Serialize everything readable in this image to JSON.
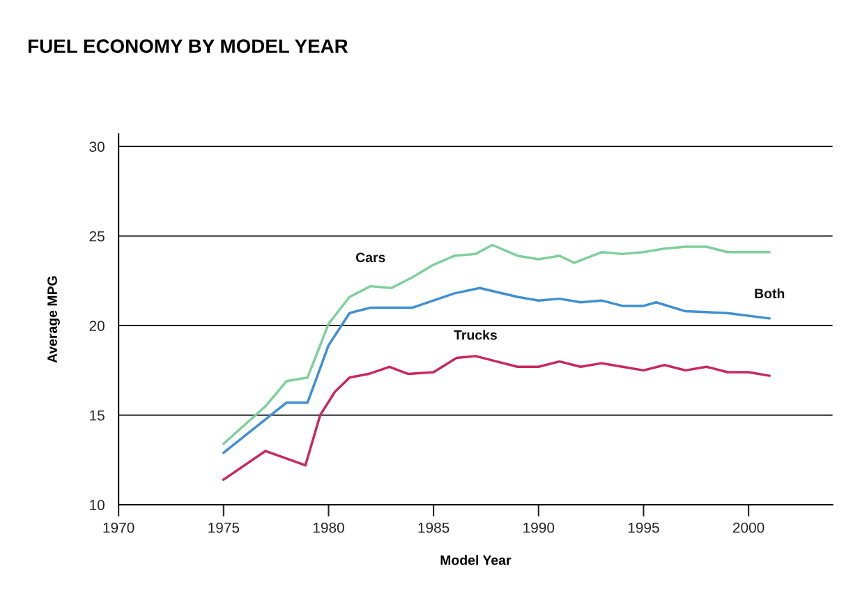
{
  "chart_data": {
    "type": "line",
    "title": "FUEL ECONOMY BY MODEL YEAR",
    "xlabel": "Model Year",
    "ylabel": "Average MPG",
    "xlim": [
      1970,
      2004
    ],
    "xticks": [
      1970,
      1975,
      1980,
      1985,
      1990,
      1995,
      2000
    ],
    "ylim": [
      10,
      30.7
    ],
    "yticks": [
      10,
      15,
      20,
      25,
      30
    ],
    "grid": "y",
    "marker": "none",
    "line_style": "solid",
    "legend": false,
    "series": [
      {
        "name": "Cars",
        "color": "#7fcf9c",
        "x": [
          1975,
          1977,
          1978,
          1979,
          1980,
          1981,
          1982,
          1983,
          1984,
          1985,
          1986,
          1987,
          1987.8,
          1989,
          1990,
          1991,
          1991.7,
          1993,
          1994,
          1995,
          1996,
          1997,
          1998,
          1999,
          2000,
          2001
        ],
        "values": [
          13.4,
          15.5,
          16.9,
          17.1,
          20.1,
          21.6,
          22.2,
          22.1,
          22.7,
          23.4,
          23.9,
          24.0,
          24.5,
          23.9,
          23.7,
          23.9,
          23.5,
          24.1,
          24.0,
          24.1,
          24.3,
          24.4,
          24.4,
          24.1,
          24.1,
          24.1
        ]
      },
      {
        "name": "Both",
        "color": "#3f8fd2",
        "x": [
          1975,
          1978,
          1979,
          1980,
          1981,
          1982,
          1984,
          1986,
          1987.2,
          1989,
          1990,
          1991,
          1992,
          1993,
          1994,
          1995,
          1995.6,
          1997,
          1999,
          2001
        ],
        "values": [
          12.9,
          15.7,
          15.7,
          18.9,
          20.7,
          21.0,
          21.0,
          21.8,
          22.1,
          21.6,
          21.4,
          21.5,
          21.3,
          21.4,
          21.1,
          21.1,
          21.3,
          20.8,
          20.7,
          20.4
        ]
      },
      {
        "name": "Trucks",
        "color": "#c8285c",
        "x": [
          1975,
          1977,
          1978.9,
          1979.6,
          1980.3,
          1981,
          1981.9,
          1982.9,
          1983.8,
          1985,
          1986.1,
          1987,
          1988,
          1989,
          1990,
          1991,
          1992,
          1993,
          1994,
          1995,
          1996,
          1997,
          1998,
          1999,
          2000,
          2001
        ],
        "values": [
          11.4,
          13.0,
          12.2,
          15.0,
          16.3,
          17.1,
          17.3,
          17.7,
          17.3,
          17.4,
          18.2,
          18.3,
          18.0,
          17.7,
          17.7,
          18.0,
          17.7,
          17.9,
          17.7,
          17.5,
          17.8,
          17.5,
          17.7,
          17.4,
          17.4,
          17.2
        ]
      }
    ]
  }
}
